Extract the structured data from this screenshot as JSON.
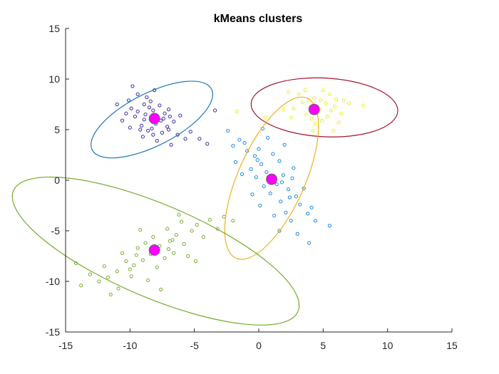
{
  "chart_data": {
    "type": "scatter",
    "title": "kMeans clusters",
    "xlabel": "",
    "ylabel": "",
    "xlim": [
      -15,
      15
    ],
    "ylim": [
      -15,
      15
    ],
    "xticks": [
      -15,
      -10,
      -5,
      0,
      5,
      10,
      15
    ],
    "yticks": [
      -15,
      -10,
      -5,
      0,
      5,
      10,
      15
    ],
    "grid": false,
    "legend": "none",
    "centroid_color": "#ff00ff",
    "series": [
      {
        "color": "#3b2aa0",
        "centroid": [
          -8.1,
          6.1
        ],
        "ellipse": {
          "center": [
            -8.3,
            6.0
          ],
          "semi_major": 5.2,
          "semi_minor": 2.6,
          "angle_deg": -27,
          "color": "#1f77b4"
        },
        "points": [
          [
            -8.8,
            6.5
          ],
          [
            -8.2,
            6.9
          ],
          [
            -7.6,
            5.9
          ],
          [
            -9.1,
            5.4
          ],
          [
            -7.9,
            6.2
          ],
          [
            -8.5,
            7.2
          ],
          [
            -7.3,
            6.6
          ],
          [
            -8.9,
            6.0
          ],
          [
            -8.3,
            5.1
          ],
          [
            -7.7,
            7.4
          ],
          [
            -9.4,
            6.8
          ],
          [
            -8.0,
            5.6
          ],
          [
            -7.1,
            5.3
          ],
          [
            -8.6,
            4.9
          ],
          [
            -9.6,
            6.3
          ],
          [
            -8.4,
            7.8
          ],
          [
            -7.5,
            4.7
          ],
          [
            -6.6,
            5.8
          ],
          [
            -9.9,
            7.1
          ],
          [
            -10.3,
            6.6
          ],
          [
            -6.3,
            4.5
          ],
          [
            -9.0,
            4.3
          ],
          [
            -7.0,
            7.0
          ],
          [
            -8.7,
            8.2
          ],
          [
            -10.6,
            5.9
          ],
          [
            -6.1,
            6.4
          ],
          [
            -7.9,
            3.9
          ],
          [
            -9.4,
            8.5
          ],
          [
            -11.0,
            7.5
          ],
          [
            -5.7,
            4.1
          ],
          [
            -8.1,
            8.9
          ],
          [
            -10.0,
            5.2
          ],
          [
            -6.8,
            3.5
          ],
          [
            -5.3,
            4.8
          ],
          [
            -9.8,
            9.3
          ],
          [
            -4.6,
            4.1
          ],
          [
            -4.0,
            3.6
          ],
          [
            -3.4,
            6.9
          ],
          [
            -7.4,
            6.1
          ],
          [
            -8.9,
            7.5
          ],
          [
            -8.2,
            4.5
          ],
          [
            -7.0,
            5.0
          ],
          [
            -6.9,
            6.3
          ],
          [
            -9.2,
            5.0
          ],
          [
            -10.1,
            7.9
          ]
        ]
      },
      {
        "color": "#eded2a",
        "centroid": [
          4.3,
          7.0
        ],
        "ellipse": {
          "center": [
            5.1,
            7.2
          ],
          "semi_major": 5.7,
          "semi_minor": 2.9,
          "angle_deg": 3,
          "color": "#a2142f"
        },
        "points": [
          [
            4.0,
            7.3
          ],
          [
            4.6,
            6.7
          ],
          [
            5.2,
            7.6
          ],
          [
            3.7,
            6.5
          ],
          [
            4.8,
            7.9
          ],
          [
            5.6,
            6.9
          ],
          [
            4.3,
            8.1
          ],
          [
            3.4,
            7.7
          ],
          [
            5.9,
            7.3
          ],
          [
            4.1,
            6.1
          ],
          [
            5.3,
            6.3
          ],
          [
            6.0,
            8.0
          ],
          [
            3.1,
            8.5
          ],
          [
            4.9,
            5.9
          ],
          [
            6.4,
            6.6
          ],
          [
            5.5,
            8.5
          ],
          [
            2.7,
            7.1
          ],
          [
            6.2,
            5.7
          ],
          [
            4.4,
            5.6
          ],
          [
            3.6,
            8.9
          ],
          [
            7.0,
            7.6
          ],
          [
            2.3,
            8.7
          ],
          [
            1.9,
            7.0
          ],
          [
            5.8,
            4.9
          ],
          [
            0.5,
            6.2
          ],
          [
            -1.7,
            6.8
          ],
          [
            8.1,
            7.4
          ],
          [
            2.5,
            6.2
          ],
          [
            4.7,
            7.0
          ],
          [
            5.0,
            8.9
          ],
          [
            3.9,
            7.9
          ],
          [
            6.6,
            7.9
          ],
          [
            4.2,
            4.9
          ]
        ]
      },
      {
        "color": "#1e88d8",
        "centroid": [
          1.0,
          0.1
        ],
        "ellipse": {
          "center": [
            1.0,
            0.2
          ],
          "semi_major": 6.8,
          "semi_minor": 3.3,
          "angle_deg": -66,
          "color": "#edb120"
        },
        "points": [
          [
            0.6,
            0.8
          ],
          [
            1.4,
            -0.4
          ],
          [
            0.2,
            1.6
          ],
          [
            1.9,
            0.5
          ],
          [
            -0.3,
            2.4
          ],
          [
            2.3,
            -0.9
          ],
          [
            0.9,
            -1.3
          ],
          [
            -0.6,
            1.1
          ],
          [
            1.6,
            1.9
          ],
          [
            2.6,
            0.2
          ],
          [
            0.0,
            3.1
          ],
          [
            -0.9,
            2.9
          ],
          [
            2.9,
            -1.6
          ],
          [
            1.1,
            2.6
          ],
          [
            -1.1,
            3.7
          ],
          [
            3.2,
            -2.4
          ],
          [
            0.4,
            -0.6
          ],
          [
            1.7,
            -2.1
          ],
          [
            -0.2,
            0.3
          ],
          [
            2.1,
            -3.2
          ],
          [
            -1.5,
            4.0
          ],
          [
            3.5,
            -0.8
          ],
          [
            0.7,
            4.2
          ],
          [
            2.5,
            -4.0
          ],
          [
            -1.8,
            1.8
          ],
          [
            1.2,
            -3.5
          ],
          [
            3.8,
            -3.3
          ],
          [
            -0.5,
            -1.4
          ],
          [
            2.0,
            3.5
          ],
          [
            4.1,
            -2.7
          ],
          [
            0.3,
            5.1
          ],
          [
            -2.0,
            3.4
          ],
          [
            3.0,
            -5.3
          ],
          [
            4.4,
            -4.0
          ],
          [
            1.6,
            -5.0
          ],
          [
            -2.4,
            4.9
          ],
          [
            5.5,
            -4.5
          ],
          [
            3.9,
            -6.2
          ],
          [
            0.1,
            -2.5
          ],
          [
            2.7,
            1.2
          ],
          [
            -1.3,
            0.6
          ],
          [
            1.8,
            -0.2
          ],
          [
            0.8,
            0.3
          ],
          [
            -0.1,
            2.0
          ],
          [
            2.4,
            -1.7
          ]
        ]
      },
      {
        "color": "#77ac30",
        "centroid": [
          -8.1,
          -6.9
        ],
        "ellipse": {
          "center": [
            -8.0,
            -7.0
          ],
          "semi_major": 12.0,
          "semi_minor": 4.6,
          "angle_deg": 23,
          "color": "#77ac30"
        },
        "points": [
          [
            -8.4,
            -7.3
          ],
          [
            -7.7,
            -6.5
          ],
          [
            -9.0,
            -7.9
          ],
          [
            -6.9,
            -6.0
          ],
          [
            -8.8,
            -6.2
          ],
          [
            -7.3,
            -7.7
          ],
          [
            -9.7,
            -8.4
          ],
          [
            -6.4,
            -5.4
          ],
          [
            -10.3,
            -8.0
          ],
          [
            -5.8,
            -6.3
          ],
          [
            -8.2,
            -5.6
          ],
          [
            -7.9,
            -8.6
          ],
          [
            -11.0,
            -9.0
          ],
          [
            -5.2,
            -5.0
          ],
          [
            -9.4,
            -6.7
          ],
          [
            -6.6,
            -7.2
          ],
          [
            -11.7,
            -9.6
          ],
          [
            -4.8,
            -4.4
          ],
          [
            -10.6,
            -7.2
          ],
          [
            -7.1,
            -4.8
          ],
          [
            -12.4,
            -10.0
          ],
          [
            -4.3,
            -5.6
          ],
          [
            -9.9,
            -9.5
          ],
          [
            -6.0,
            -4.1
          ],
          [
            -13.1,
            -9.3
          ],
          [
            -3.8,
            -3.9
          ],
          [
            -8.6,
            -9.9
          ],
          [
            -5.5,
            -7.5
          ],
          [
            -12.0,
            -8.5
          ],
          [
            -3.2,
            -4.8
          ],
          [
            -10.9,
            -10.7
          ],
          [
            -6.2,
            -3.4
          ],
          [
            -13.8,
            -10.4
          ],
          [
            -2.7,
            -3.6
          ],
          [
            -7.6,
            -10.8
          ],
          [
            -9.2,
            -4.9
          ],
          [
            -14.2,
            -8.2
          ],
          [
            -2.0,
            -4.0
          ],
          [
            -11.5,
            -11.3
          ],
          [
            -4.9,
            -8.0
          ],
          [
            -7.0,
            -6.8
          ],
          [
            -8.0,
            -7.0
          ],
          [
            -9.5,
            -7.4
          ],
          [
            -6.7,
            -5.9
          ],
          [
            -10.0,
            -8.8
          ]
        ]
      }
    ]
  }
}
